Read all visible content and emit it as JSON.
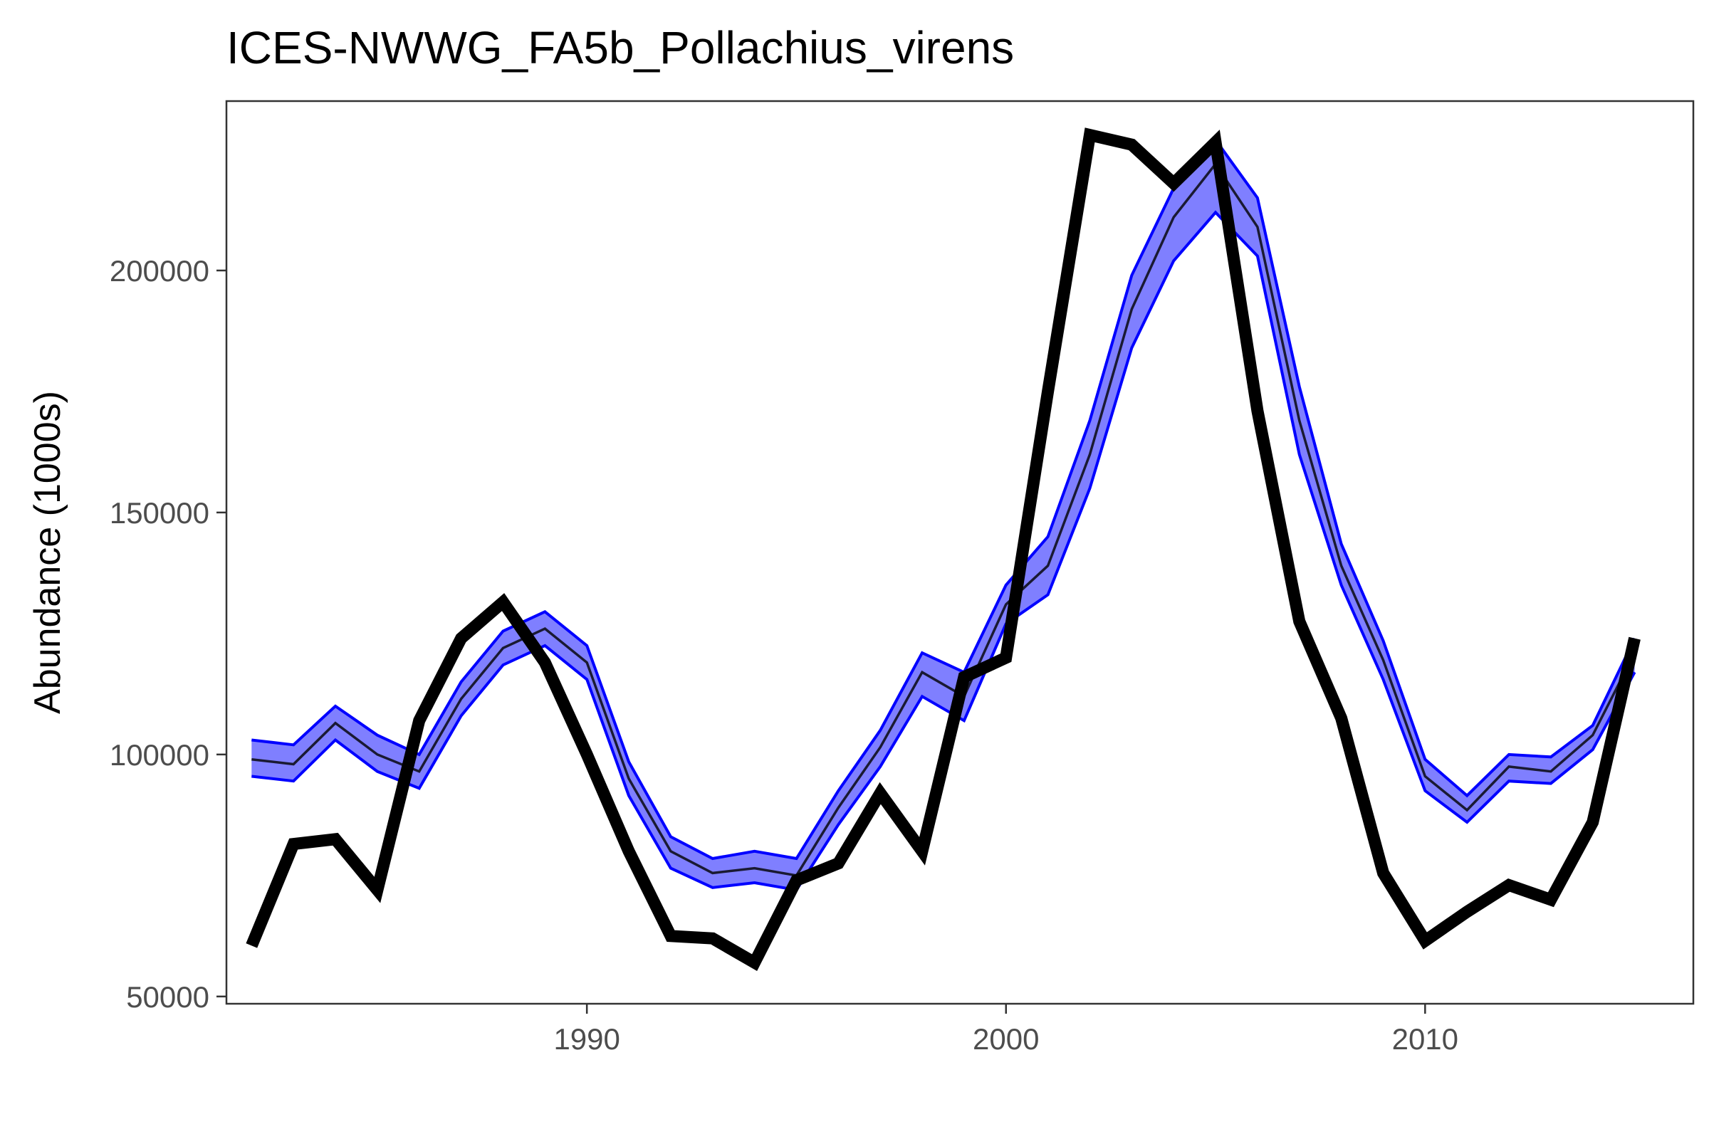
{
  "chart_data": {
    "type": "line",
    "title": "ICES-NWWG_FA5b_Pollachius_virens",
    "xlabel": "",
    "ylabel": "Abundance (1000s)",
    "xlim": [
      1981.4,
      2016.4
    ],
    "ylim": [
      48500,
      235000
    ],
    "x_ticks": [
      1990,
      2000,
      2010
    ],
    "y_ticks": [
      50000,
      100000,
      150000,
      200000
    ],
    "x_tick_labels": [
      "1990",
      "2000",
      "2010"
    ],
    "y_tick_labels": [
      "50000",
      "100000",
      "150000",
      "200000"
    ],
    "grid": false,
    "legend": "none",
    "colors": {
      "band_fill": "#7f7fff",
      "band_edge": "#0000ff",
      "model_line": "#1a1a33",
      "observed_line": "#000000"
    },
    "x": [
      1982,
      1983,
      1984,
      1985,
      1986,
      1987,
      1988,
      1989,
      1990,
      1991,
      1992,
      1993,
      1994,
      1995,
      1996,
      1997,
      1998,
      1999,
      2000,
      2001,
      2002,
      2003,
      2004,
      2005,
      2006,
      2007,
      2008,
      2009,
      2010,
      2011,
      2012,
      2013,
      2014,
      2015
    ],
    "series": [
      {
        "role": "model_estimate",
        "values": [
          99000,
          98000,
          106500,
          100000,
          96500,
          111500,
          122000,
          126000,
          119000,
          95000,
          80000,
          75500,
          76500,
          75000,
          89000,
          101500,
          117000,
          112000,
          131000,
          139000,
          162000,
          192000,
          211000,
          222000,
          209000,
          169000,
          139000,
          119500,
          95500,
          88500,
          97500,
          96500,
          104000,
          121000
        ]
      },
      {
        "role": "model_lower",
        "values": [
          95500,
          94500,
          103000,
          96500,
          93000,
          108000,
          118500,
          122500,
          115500,
          91500,
          76500,
          72500,
          73500,
          72000,
          85500,
          97500,
          112000,
          107000,
          127000,
          133000,
          155000,
          184000,
          202000,
          212000,
          203000,
          162000,
          135000,
          115500,
          92500,
          86000,
          94500,
          94000,
          101000,
          117000
        ]
      },
      {
        "role": "model_upper",
        "values": [
          103000,
          102000,
          110000,
          104000,
          100000,
          115000,
          125500,
          129500,
          122500,
          98500,
          83000,
          78500,
          80000,
          78500,
          92500,
          105000,
          121000,
          117000,
          135000,
          145000,
          169000,
          199000,
          217000,
          227000,
          215000,
          176000,
          143500,
          123500,
          99000,
          91500,
          100000,
          99500,
          106000,
          124000
        ]
      },
      {
        "role": "observed",
        "values": [
          60500,
          81500,
          82500,
          72000,
          107000,
          124000,
          131500,
          119000,
          100000,
          80000,
          62500,
          62000,
          57000,
          74000,
          77500,
          92000,
          80000,
          116000,
          120000,
          175000,
          228000,
          226000,
          218000,
          226500,
          171000,
          127500,
          107500,
          75500,
          61500,
          67500,
          73000,
          70000,
          86000,
          124000
        ]
      }
    ]
  }
}
